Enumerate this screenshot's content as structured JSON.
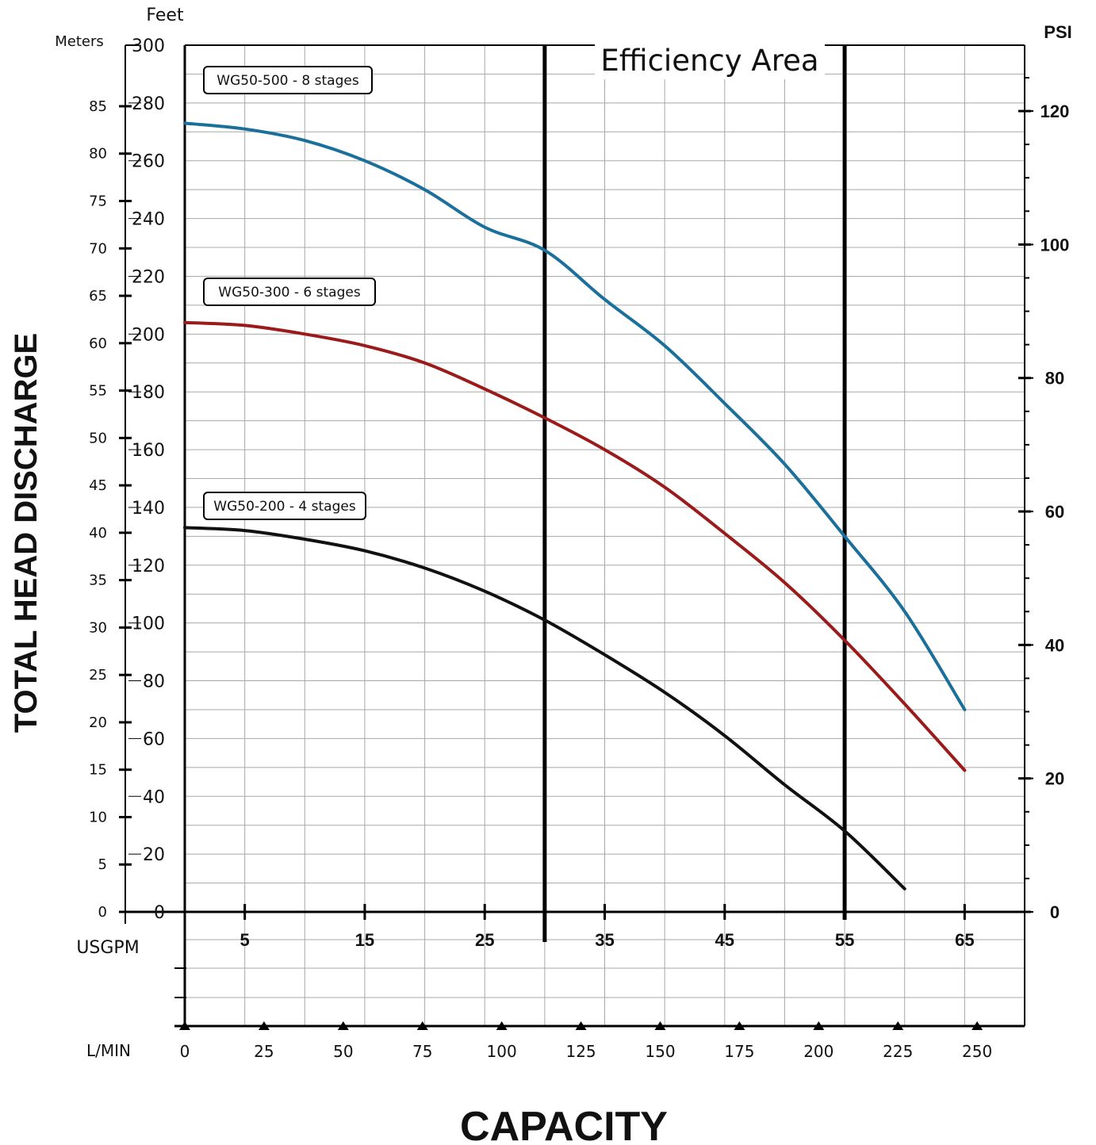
{
  "chart_data": {
    "type": "line",
    "title": "Efficiency Area",
    "ylabel": "TOTAL HEAD DISCHARGE",
    "xlabel": "CAPACITY",
    "left_axis": {
      "unit_meters": "Meters",
      "unit_feet": "Feet",
      "feet_range": [
        0,
        300
      ],
      "feet_ticks": [
        "0",
        "20",
        "40",
        "60",
        "80",
        "100",
        "120",
        "140",
        "160",
        "180",
        "200",
        "220",
        "240",
        "260",
        "280",
        "300"
      ],
      "meters_ticks": [
        "0",
        "5",
        "10",
        "15",
        "20",
        "25",
        "30",
        "35",
        "40",
        "45",
        "50",
        "55",
        "60",
        "65",
        "70",
        "75",
        "80",
        "85"
      ]
    },
    "right_axis": {
      "unit": "PSI",
      "ticks": [
        "0",
        "20",
        "40",
        "60",
        "80",
        "100",
        "120"
      ]
    },
    "x_axis": {
      "unit": "USGPM",
      "range": [
        0,
        70
      ],
      "ticks": [
        "5",
        "15",
        "25",
        "35",
        "45",
        "55",
        "65"
      ]
    },
    "secondary_x_axis": {
      "unit": "L/MIN",
      "ticks": [
        "0",
        "25",
        "50",
        "75",
        "100",
        "125",
        "150",
        "175",
        "200",
        "225",
        "250"
      ]
    },
    "efficiency_area": [
      30,
      55
    ],
    "series": [
      {
        "name": "WG50-500 - 8 stages",
        "color": "#1b6f9b",
        "x": [
          0,
          5,
          10,
          15,
          20,
          25,
          30,
          35,
          40,
          45,
          50,
          55,
          60,
          65
        ],
        "y": [
          273,
          271,
          267,
          260,
          250,
          237,
          229,
          212,
          196,
          176,
          155,
          130,
          104,
          70
        ]
      },
      {
        "name": "WG50-300 - 6 stages",
        "color": "#9b1a1a",
        "x": [
          0,
          5,
          10,
          15,
          20,
          25,
          30,
          35,
          40,
          45,
          50,
          55,
          60,
          65
        ],
        "y": [
          204,
          203,
          200,
          196,
          190,
          181,
          171,
          160,
          147,
          131,
          114,
          94,
          72,
          49
        ]
      },
      {
        "name": "WG50-200 - 4 stages",
        "color": "#111111",
        "x": [
          0,
          5,
          10,
          15,
          20,
          25,
          30,
          35,
          40,
          45,
          50,
          55,
          60
        ],
        "y": [
          133,
          132,
          129,
          125,
          119,
          111,
          101,
          89,
          76,
          61,
          44,
          28,
          8
        ]
      }
    ]
  }
}
